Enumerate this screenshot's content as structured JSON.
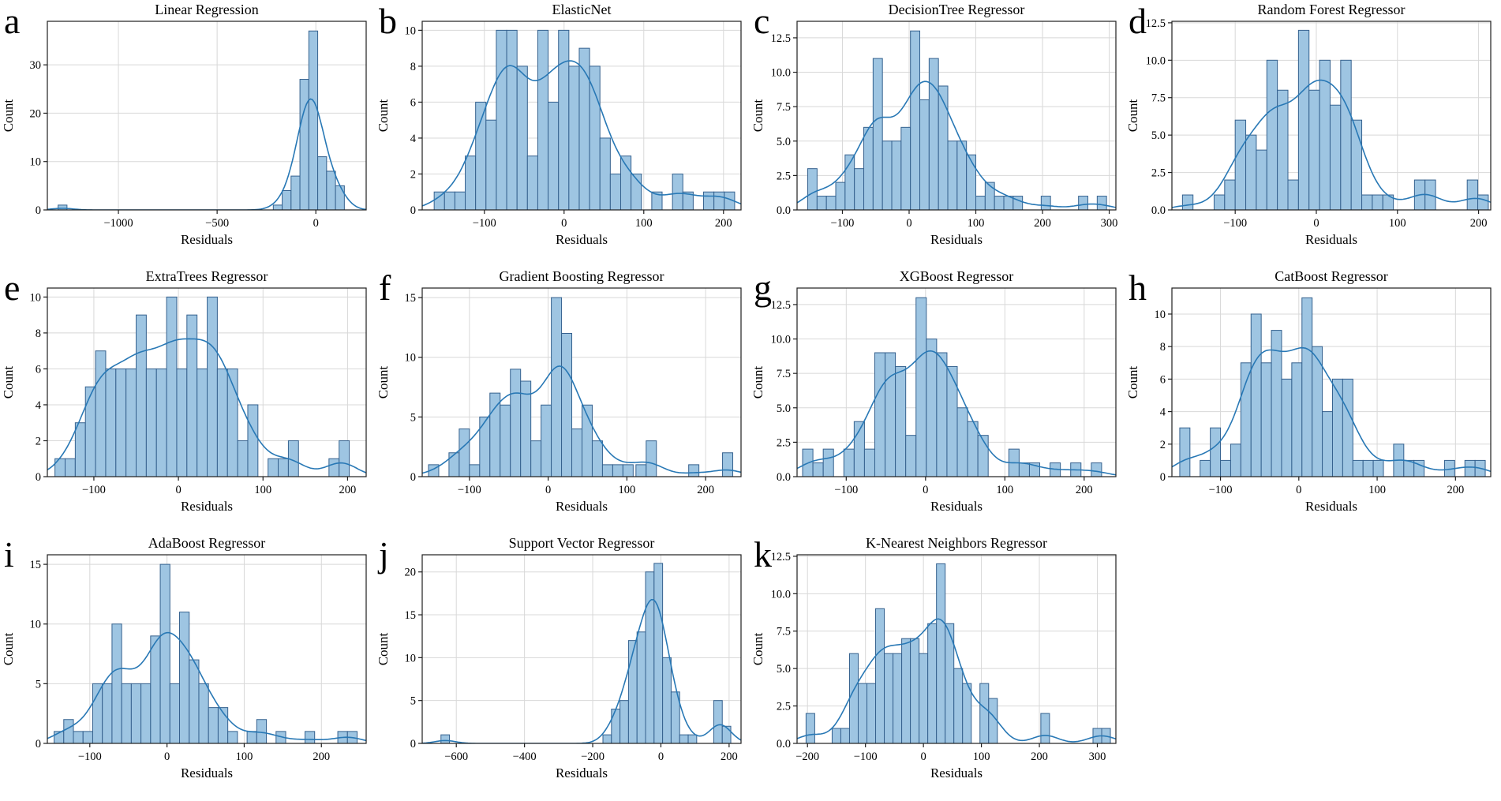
{
  "figure": {
    "background": "#ffffff",
    "xlabel_text": "Residuals",
    "ylabel_text": "Count"
  },
  "style": {
    "bar_fill": "#9ec5e2",
    "bar_edge": "#35618e",
    "kde_color": "#2878b5",
    "grid_color": "#d8d8d8",
    "axis_color": "#1f1f1f",
    "text_color": "#000000"
  },
  "chart_data": [
    {
      "panel_label": "a",
      "type": "histogram_kde",
      "title": "Linear Regression",
      "xlabel": "Residuals",
      "ylabel": "Count",
      "xlim": [
        -1360,
        255
      ],
      "ylim": [
        0,
        39
      ],
      "xticks": [
        -1000,
        -500,
        0
      ],
      "yticks": [
        "0",
        "10",
        "20",
        "30"
      ],
      "bin_width": 45,
      "kde_bw_factor": 1.2,
      "bars": [
        [
          -1283,
          1
        ],
        [
          -193,
          1
        ],
        [
          -148,
          4
        ],
        [
          -103,
          7
        ],
        [
          -58,
          27
        ],
        [
          -13,
          37
        ],
        [
          32,
          11
        ],
        [
          77,
          8
        ],
        [
          122,
          5
        ]
      ]
    },
    {
      "panel_label": "b",
      "type": "histogram_kde",
      "title": "ElasticNet",
      "xlabel": "Residuals",
      "ylabel": "Count",
      "xlim": [
        -178,
        222
      ],
      "ylim": [
        0,
        10.5
      ],
      "xticks": [
        -100,
        0,
        100,
        200
      ],
      "yticks": [
        "0",
        "2",
        "4",
        "6",
        "8",
        "10"
      ],
      "bin_width": 13,
      "kde_bw_factor": 1.5,
      "bars": [
        [
          -156.5,
          1
        ],
        [
          -143.5,
          1
        ],
        [
          -130.5,
          1
        ],
        [
          -117.5,
          3
        ],
        [
          -104.5,
          6
        ],
        [
          -91.5,
          5
        ],
        [
          -78.5,
          10
        ],
        [
          -65.5,
          10
        ],
        [
          -52.5,
          8
        ],
        [
          -39.5,
          3
        ],
        [
          -26.5,
          10
        ],
        [
          -13.5,
          6
        ],
        [
          -0.5,
          10
        ],
        [
          12.5,
          8
        ],
        [
          25.5,
          9
        ],
        [
          38.5,
          8
        ],
        [
          51.5,
          4
        ],
        [
          64.5,
          2
        ],
        [
          77.5,
          3
        ],
        [
          90.5,
          2
        ],
        [
          116.5,
          1
        ],
        [
          142.5,
          2
        ],
        [
          155.5,
          1
        ],
        [
          181.5,
          1
        ],
        [
          194.5,
          1
        ],
        [
          207.5,
          1
        ]
      ]
    },
    {
      "panel_label": "c",
      "type": "histogram_kde",
      "title": "DecisionTree Regressor",
      "xlabel": "Residuals",
      "ylabel": "Count",
      "xlim": [
        -168,
        310
      ],
      "ylim": [
        0,
        13.7
      ],
      "xticks": [
        -100,
        0,
        100,
        200,
        300
      ],
      "yticks": [
        "0.0",
        "2.5",
        "5.0",
        "7.5",
        "10.0",
        "12.5"
      ],
      "bin_width": 14,
      "kde_bw_factor": 1.5,
      "bars": [
        [
          -145,
          3
        ],
        [
          -131,
          1
        ],
        [
          -117,
          1
        ],
        [
          -103,
          2
        ],
        [
          -89,
          4
        ],
        [
          -75,
          3
        ],
        [
          -61,
          6
        ],
        [
          -47,
          11
        ],
        [
          -33,
          5
        ],
        [
          -19,
          5
        ],
        [
          -5,
          6
        ],
        [
          9,
          13
        ],
        [
          23,
          8
        ],
        [
          37,
          11
        ],
        [
          51,
          9
        ],
        [
          65,
          5
        ],
        [
          79,
          5
        ],
        [
          93,
          4
        ],
        [
          107,
          1
        ],
        [
          121,
          2
        ],
        [
          135,
          1
        ],
        [
          149,
          1
        ],
        [
          163,
          1
        ],
        [
          205,
          1
        ],
        [
          261,
          1
        ],
        [
          289,
          1
        ]
      ]
    },
    {
      "panel_label": "d",
      "type": "histogram_kde",
      "title": "Random Forest Regressor",
      "xlabel": "Residuals",
      "ylabel": "Count",
      "xlim": [
        -178,
        215
      ],
      "ylim": [
        0,
        12.6
      ],
      "xticks": [
        -100,
        0,
        100,
        200
      ],
      "yticks": [
        "0.0",
        "2.5",
        "5.0",
        "7.5",
        "10.0",
        "12.5"
      ],
      "bin_width": 13,
      "kde_bw_factor": 1.5,
      "bars": [
        [
          -158.5,
          1
        ],
        [
          -119.5,
          1
        ],
        [
          -106.5,
          2
        ],
        [
          -93.5,
          6
        ],
        [
          -80.5,
          5
        ],
        [
          -67.5,
          4
        ],
        [
          -54.5,
          10
        ],
        [
          -41.5,
          8
        ],
        [
          -28.5,
          2
        ],
        [
          -15.5,
          12
        ],
        [
          -2.5,
          8
        ],
        [
          10.5,
          10
        ],
        [
          23.5,
          7
        ],
        [
          36.5,
          10
        ],
        [
          49.5,
          6
        ],
        [
          62.5,
          1
        ],
        [
          75.5,
          1
        ],
        [
          88.5,
          1
        ],
        [
          127.5,
          2
        ],
        [
          140.5,
          2
        ],
        [
          192.5,
          2
        ],
        [
          205.5,
          1
        ]
      ]
    },
    {
      "panel_label": "e",
      "type": "histogram_kde",
      "title": "ExtraTrees Regressor",
      "xlabel": "Residuals",
      "ylabel": "Count",
      "xlim": [
        -155,
        222
      ],
      "ylim": [
        0,
        10.5
      ],
      "xticks": [
        -100,
        0,
        100,
        200
      ],
      "yticks": [
        "0",
        "2",
        "4",
        "6",
        "8",
        "10"
      ],
      "bin_width": 12,
      "kde_bw_factor": 1.5,
      "bars": [
        [
          -140,
          1
        ],
        [
          -128,
          1
        ],
        [
          -116,
          3
        ],
        [
          -104,
          5
        ],
        [
          -92,
          7
        ],
        [
          -80,
          6
        ],
        [
          -68,
          6
        ],
        [
          -56,
          6
        ],
        [
          -44,
          9
        ],
        [
          -32,
          6
        ],
        [
          -20,
          6
        ],
        [
          -8,
          10
        ],
        [
          4,
          6
        ],
        [
          16,
          9
        ],
        [
          28,
          6
        ],
        [
          40,
          10
        ],
        [
          52,
          6
        ],
        [
          64,
          6
        ],
        [
          76,
          2
        ],
        [
          88,
          4
        ],
        [
          112,
          1
        ],
        [
          124,
          1
        ],
        [
          136,
          2
        ],
        [
          184,
          1
        ],
        [
          196,
          2
        ]
      ]
    },
    {
      "panel_label": "f",
      "type": "histogram_kde",
      "title": "Gradient Boosting Regressor",
      "xlabel": "Residuals",
      "ylabel": "Count",
      "xlim": [
        -160,
        245
      ],
      "ylim": [
        0,
        15.8
      ],
      "xticks": [
        -100,
        0,
        100,
        200
      ],
      "yticks": [
        "0",
        "5",
        "10",
        "15"
      ],
      "bin_width": 13,
      "kde_bw_factor": 1.5,
      "bars": [
        [
          -145.5,
          1
        ],
        [
          -119.5,
          2
        ],
        [
          -106.5,
          4
        ],
        [
          -93.5,
          1
        ],
        [
          -80.5,
          5
        ],
        [
          -67.5,
          7
        ],
        [
          -54.5,
          6
        ],
        [
          -41.5,
          9
        ],
        [
          -28.5,
          8
        ],
        [
          -15.5,
          3
        ],
        [
          -2.5,
          6
        ],
        [
          10.5,
          15
        ],
        [
          23.5,
          12
        ],
        [
          36.5,
          4
        ],
        [
          49.5,
          6
        ],
        [
          62.5,
          3
        ],
        [
          75.5,
          1
        ],
        [
          88.5,
          1
        ],
        [
          101.5,
          1
        ],
        [
          118,
          1
        ],
        [
          131,
          3
        ],
        [
          185,
          1
        ],
        [
          228,
          2
        ]
      ]
    },
    {
      "panel_label": "g",
      "type": "histogram_kde",
      "title": "XGBoost Regressor",
      "xlabel": "Residuals",
      "ylabel": "Count",
      "xlim": [
        -162,
        240
      ],
      "ylim": [
        0,
        13.7
      ],
      "xticks": [
        -100,
        0,
        100,
        200
      ],
      "yticks": [
        "0.0",
        "2.5",
        "5.0",
        "7.5",
        "10.0",
        "12.5"
      ],
      "bin_width": 13,
      "kde_bw_factor": 1.5,
      "bars": [
        [
          -148.5,
          2
        ],
        [
          -135.5,
          1
        ],
        [
          -122.5,
          2
        ],
        [
          -96.5,
          2
        ],
        [
          -83.5,
          4
        ],
        [
          -70.5,
          2
        ],
        [
          -57.5,
          9
        ],
        [
          -44.5,
          9
        ],
        [
          -31.5,
          8
        ],
        [
          -18.5,
          3
        ],
        [
          -5.5,
          13
        ],
        [
          7.5,
          10
        ],
        [
          20.5,
          9
        ],
        [
          33.5,
          8
        ],
        [
          46.5,
          5
        ],
        [
          59.5,
          4
        ],
        [
          72.5,
          3
        ],
        [
          111.5,
          2
        ],
        [
          124.5,
          1
        ],
        [
          137.5,
          1
        ],
        [
          163.5,
          1
        ],
        [
          189.5,
          1
        ],
        [
          215.5,
          1
        ]
      ]
    },
    {
      "panel_label": "h",
      "type": "histogram_kde",
      "title": "CatBoost Regressor",
      "xlabel": "Residuals",
      "ylabel": "Count",
      "xlim": [
        -162,
        245
      ],
      "ylim": [
        0,
        11.6
      ],
      "xticks": [
        -100,
        0,
        100,
        200
      ],
      "yticks": [
        "0",
        "2",
        "4",
        "6",
        "8",
        "10"
      ],
      "bin_width": 13,
      "kde_bw_factor": 1.5,
      "bars": [
        [
          -145.5,
          3
        ],
        [
          -119.5,
          1
        ],
        [
          -106.5,
          3
        ],
        [
          -93.5,
          1
        ],
        [
          -80.5,
          2
        ],
        [
          -67.5,
          7
        ],
        [
          -54.5,
          10
        ],
        [
          -41.5,
          7
        ],
        [
          -28.5,
          9
        ],
        [
          -15.5,
          6
        ],
        [
          -2.5,
          7
        ],
        [
          10.5,
          11
        ],
        [
          23.5,
          8
        ],
        [
          36.5,
          4
        ],
        [
          49.5,
          6
        ],
        [
          62.5,
          6
        ],
        [
          75.5,
          1
        ],
        [
          88.5,
          1
        ],
        [
          101.5,
          1
        ],
        [
          127.5,
          2
        ],
        [
          140.5,
          1
        ],
        [
          153.5,
          1
        ],
        [
          192.5,
          1
        ],
        [
          218.5,
          1
        ],
        [
          231.5,
          1
        ]
      ]
    },
    {
      "panel_label": "i",
      "type": "histogram_kde",
      "title": "AdaBoost Regressor",
      "xlabel": "Residuals",
      "ylabel": "Count",
      "xlim": [
        -155,
        258
      ],
      "ylim": [
        0,
        15.8
      ],
      "xticks": [
        -100,
        0,
        100,
        200
      ],
      "yticks": [
        "0",
        "5",
        "10",
        "15"
      ],
      "bin_width": 12.5,
      "kde_bw_factor": 1.5,
      "bars": [
        [
          -140,
          1
        ],
        [
          -127.5,
          2
        ],
        [
          -115,
          1
        ],
        [
          -102.5,
          1
        ],
        [
          -90,
          5
        ],
        [
          -77.5,
          5
        ],
        [
          -65,
          10
        ],
        [
          -52.5,
          5
        ],
        [
          -40,
          5
        ],
        [
          -27.5,
          5
        ],
        [
          -15,
          9
        ],
        [
          -2.5,
          15
        ],
        [
          10,
          5
        ],
        [
          22.5,
          11
        ],
        [
          35,
          7
        ],
        [
          47.5,
          5
        ],
        [
          60,
          3
        ],
        [
          72.5,
          3
        ],
        [
          85,
          1
        ],
        [
          110,
          1
        ],
        [
          122.5,
          2
        ],
        [
          147.5,
          1
        ],
        [
          185,
          1
        ],
        [
          227.5,
          1
        ],
        [
          240,
          1
        ]
      ]
    },
    {
      "panel_label": "j",
      "type": "histogram_kde",
      "title": "Support Vector Regressor",
      "xlabel": "Residuals",
      "ylabel": "Count",
      "xlim": [
        -700,
        235
      ],
      "ylim": [
        0,
        22
      ],
      "xticks": [
        -600,
        -400,
        -200,
        0,
        200
      ],
      "yticks": [
        "0",
        "5",
        "10",
        "15",
        "20"
      ],
      "bin_width": 25,
      "kde_bw_factor": 1.2,
      "bars": [
        [
          -632.5,
          1
        ],
        [
          -157.5,
          1
        ],
        [
          -132.5,
          4
        ],
        [
          -107.5,
          5
        ],
        [
          -82.5,
          12
        ],
        [
          -57.5,
          13
        ],
        [
          -32.5,
          20
        ],
        [
          -7.5,
          21
        ],
        [
          17.5,
          10
        ],
        [
          42.5,
          6
        ],
        [
          67.5,
          1
        ],
        [
          92.5,
          1
        ],
        [
          167.5,
          5
        ],
        [
          192.5,
          2
        ]
      ]
    },
    {
      "panel_label": "k",
      "type": "histogram_kde",
      "title": "K-Nearest Neighbors Regressor",
      "xlabel": "Residuals",
      "ylabel": "Count",
      "xlim": [
        -218,
        332
      ],
      "ylim": [
        0,
        12.6
      ],
      "xticks": [
        -200,
        -100,
        0,
        100,
        200,
        300
      ],
      "yticks": [
        "0.0",
        "2.5",
        "5.0",
        "7.5",
        "10.0",
        "12.5"
      ],
      "bin_width": 15,
      "kde_bw_factor": 1.5,
      "bars": [
        [
          -195,
          2
        ],
        [
          -150,
          1
        ],
        [
          -135,
          1
        ],
        [
          -120,
          6
        ],
        [
          -105,
          4
        ],
        [
          -90,
          4
        ],
        [
          -75,
          9
        ],
        [
          -60,
          6
        ],
        [
          -45,
          6
        ],
        [
          -30,
          7
        ],
        [
          -15,
          7
        ],
        [
          0,
          6
        ],
        [
          15,
          8
        ],
        [
          30,
          12
        ],
        [
          45,
          8
        ],
        [
          60,
          5
        ],
        [
          75,
          4
        ],
        [
          105,
          4
        ],
        [
          120,
          3
        ],
        [
          210,
          2
        ],
        [
          300,
          1
        ],
        [
          315,
          1
        ]
      ]
    }
  ]
}
